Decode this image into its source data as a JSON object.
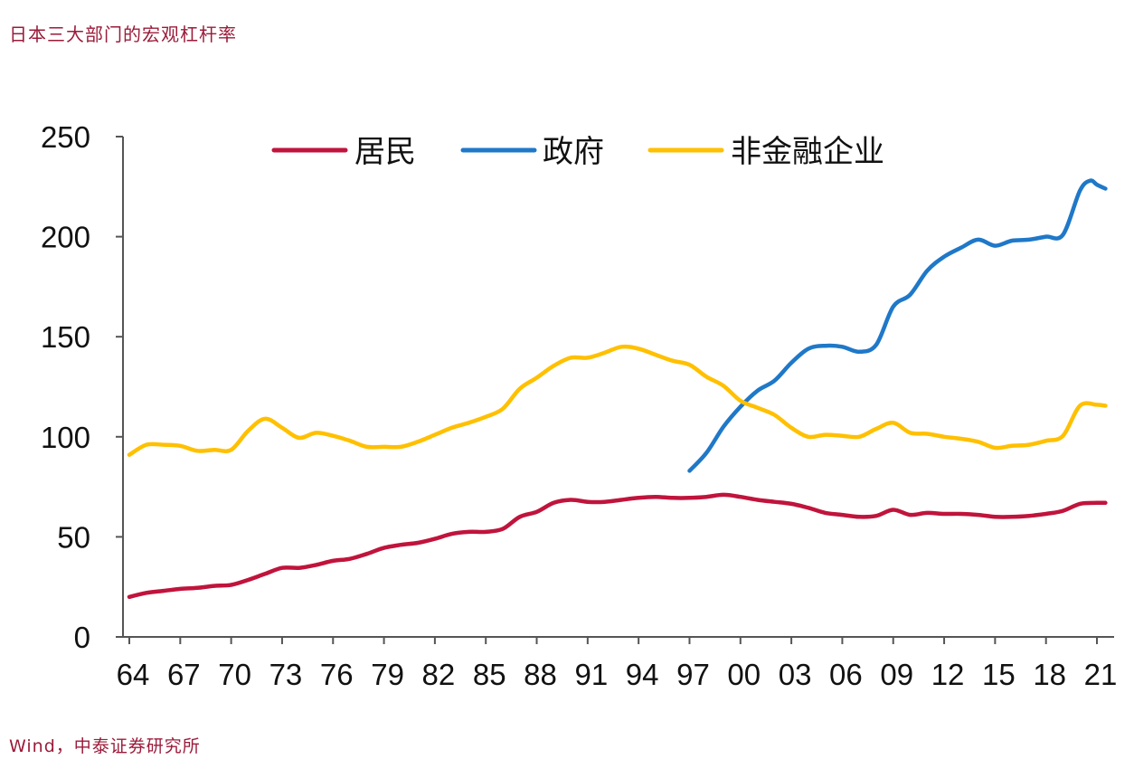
{
  "title": "日本三大部门的宏观杠杆率",
  "source": "Wind，中泰证券研究所",
  "chart_data": {
    "type": "line",
    "title": "日本三大部门的宏观杠杆率",
    "xlabel": "",
    "ylabel": "",
    "ylim": [
      0,
      250
    ],
    "yticks": [
      0,
      50,
      100,
      150,
      200,
      250
    ],
    "xlim": [
      1964,
      2022
    ],
    "xtick_years": [
      1964,
      1967,
      1970,
      1973,
      1976,
      1979,
      1982,
      1985,
      1988,
      1991,
      1994,
      1997,
      2000,
      2003,
      2006,
      2009,
      2012,
      2015,
      2018,
      2021
    ],
    "xtick_labels": [
      "64",
      "67",
      "70",
      "73",
      "76",
      "79",
      "82",
      "85",
      "88",
      "91",
      "94",
      "97",
      "00",
      "03",
      "06",
      "09",
      "12",
      "15",
      "18",
      "21"
    ],
    "grid": false,
    "legend_position": "top",
    "series": [
      {
        "name": "居民",
        "color": "#c0143c",
        "x": [
          1964.0,
          1965.0,
          1966.0,
          1967.0,
          1968.0,
          1969.0,
          1970.0,
          1971.0,
          1972.0,
          1973.0,
          1974.0,
          1975.0,
          1976.0,
          1977.0,
          1978.0,
          1979.0,
          1980.0,
          1981.0,
          1982.0,
          1983.0,
          1984.0,
          1985.0,
          1986.0,
          1987.0,
          1988.0,
          1989.0,
          1990.0,
          1991.0,
          1992.0,
          1993.0,
          1994.0,
          1995.0,
          1996.0,
          1997.0,
          1998.0,
          1999.0,
          2000.0,
          2001.0,
          2002.0,
          2003.0,
          2004.0,
          2005.0,
          2006.0,
          2007.0,
          2008.0,
          2009.0,
          2010.0,
          2011.0,
          2012.0,
          2013.0,
          2014.0,
          2015.0,
          2016.0,
          2017.0,
          2018.0,
          2019.0,
          2020.0,
          2021.0,
          2021.5
        ],
        "values": [
          20,
          22,
          23,
          24,
          24.5,
          25.5,
          26,
          28.5,
          31.5,
          34.5,
          34.5,
          36,
          38,
          39,
          41.5,
          44.5,
          46,
          47,
          49,
          51.5,
          52.5,
          52.5,
          54,
          60,
          62.5,
          67,
          68.5,
          67.5,
          67.5,
          68.5,
          69.5,
          70,
          69.5,
          69.5,
          70,
          71,
          70,
          68.5,
          67.5,
          66.5,
          64.5,
          62,
          61,
          60,
          60.5,
          63.5,
          61,
          62,
          61.5,
          61.5,
          61,
          60,
          60,
          60.5,
          61.5,
          63,
          66.5,
          67,
          67
        ]
      },
      {
        "name": "政府",
        "color": "#1f78c8",
        "x": [
          1997.0,
          1998.0,
          1999.0,
          2000.0,
          2001.0,
          2002.0,
          2003.0,
          2004.0,
          2005.0,
          2006.0,
          2007.0,
          2008.0,
          2009.0,
          2010.0,
          2011.0,
          2012.0,
          2013.0,
          2014.0,
          2015.0,
          2016.0,
          2017.0,
          2018.0,
          2019.0,
          2020.0,
          2020.6,
          2021.0,
          2021.5
        ],
        "values": [
          83,
          92,
          105,
          115,
          123,
          128,
          137,
          144,
          145.5,
          145,
          142.5,
          146,
          165,
          171,
          183,
          190,
          194.5,
          198.5,
          195.5,
          198,
          198.5,
          200,
          201,
          223,
          228,
          226,
          224
        ]
      },
      {
        "name": "非金融企业",
        "color": "#ffc000",
        "x": [
          1964.0,
          1965.0,
          1966.0,
          1967.0,
          1968.0,
          1969.0,
          1970.0,
          1971.0,
          1972.0,
          1973.0,
          1974.0,
          1975.0,
          1976.0,
          1977.0,
          1978.0,
          1979.0,
          1980.0,
          1981.0,
          1982.0,
          1983.0,
          1984.0,
          1985.0,
          1986.0,
          1987.0,
          1988.0,
          1989.0,
          1990.0,
          1991.0,
          1992.0,
          1993.0,
          1994.0,
          1995.0,
          1996.0,
          1997.0,
          1998.0,
          1999.0,
          2000.0,
          2001.0,
          2002.0,
          2003.0,
          2004.0,
          2005.0,
          2006.0,
          2007.0,
          2008.0,
          2009.0,
          2010.0,
          2011.0,
          2012.0,
          2013.0,
          2014.0,
          2015.0,
          2016.0,
          2017.0,
          2018.0,
          2019.0,
          2020.0,
          2021.0,
          2021.5
        ],
        "values": [
          91,
          96,
          96,
          95.5,
          93,
          93.5,
          93.5,
          103,
          109,
          104.5,
          99.5,
          102,
          100.5,
          98,
          95,
          95,
          95,
          97.5,
          101,
          104.5,
          107,
          110,
          114,
          124,
          129.5,
          135.5,
          139.5,
          139.5,
          142,
          145,
          144,
          141,
          138,
          136,
          130,
          125.5,
          118,
          114.5,
          111,
          104.5,
          100,
          101,
          100.5,
          100,
          104,
          107,
          102,
          101.5,
          100,
          99,
          97.5,
          94.5,
          95.5,
          96,
          98,
          100.5,
          115.5,
          116,
          115.5
        ]
      }
    ]
  }
}
